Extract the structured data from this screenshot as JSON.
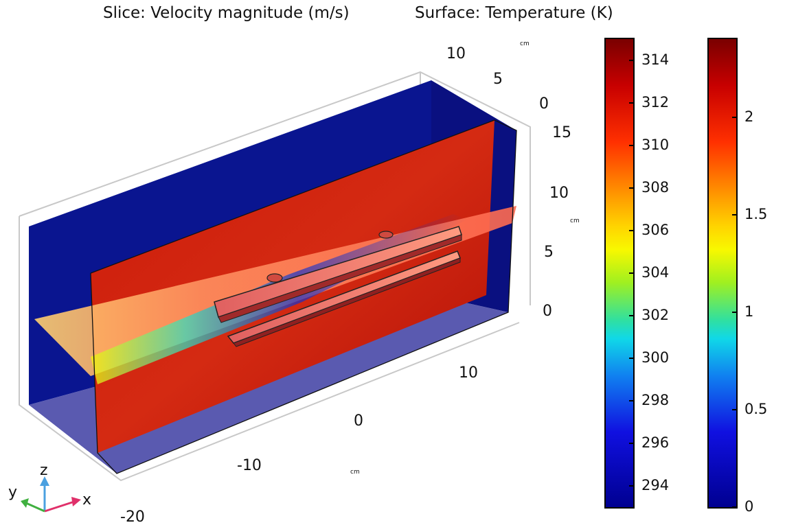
{
  "titles": {
    "slice": "Slice: Velocity magnitude (m/s)",
    "surface": "Surface: Temperature (K)"
  },
  "axes": {
    "unit": "cm",
    "x_ticks": [
      "-20",
      "-10",
      "0",
      "10"
    ],
    "y_ticks": [
      "10",
      "5",
      "0"
    ],
    "z_ticks": [
      "15",
      "10",
      "5",
      "0"
    ],
    "triad": {
      "x": "x",
      "y": "y",
      "z": "z"
    }
  },
  "colorbars": {
    "temperature": {
      "ticks": [
        "314",
        "312",
        "310",
        "308",
        "306",
        "304",
        "302",
        "300",
        "298",
        "296",
        "294"
      ],
      "range": [
        293,
        315
      ]
    },
    "velocity": {
      "ticks": [
        "2",
        "1.5",
        "1",
        "0.5",
        "0"
      ],
      "range": [
        0,
        2.4
      ]
    }
  },
  "colors": {
    "colormap": "rainbow",
    "dark_red": "#800000",
    "red": "#e5230c",
    "yellow": "#f2f20a",
    "cyan": "#19e6e6",
    "blue": "#0a1ee6",
    "dark_blue": "#000080"
  }
}
